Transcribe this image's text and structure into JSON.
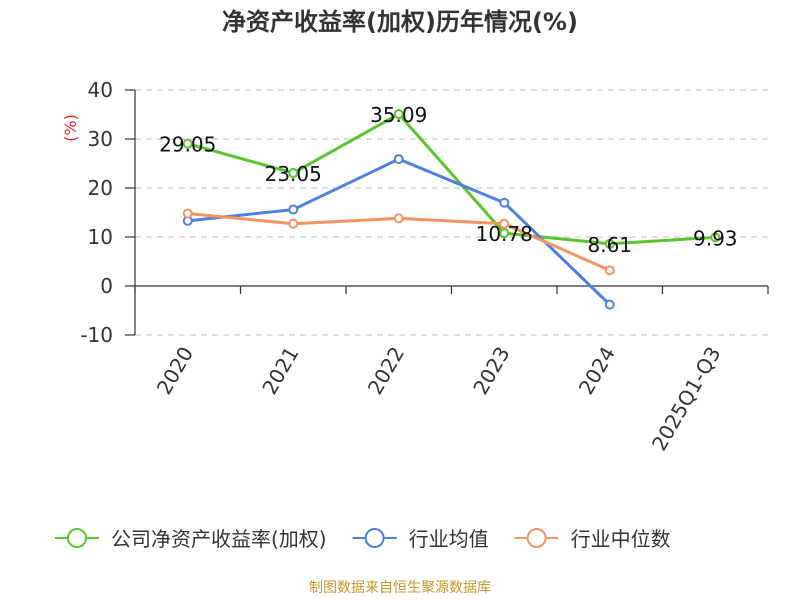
{
  "chart_data": {
    "type": "line",
    "title": "净资产收益率(加权)历年情况(%)",
    "ylabel": "(%)",
    "categories": [
      "2020",
      "2021",
      "2022",
      "2023",
      "2024",
      "2025Q1-Q3"
    ],
    "yticks": [
      "40",
      "30",
      "20",
      "10",
      "0",
      "-10"
    ],
    "ylim": [
      -10,
      40
    ],
    "grid": true,
    "legend_position": "bottom",
    "series": [
      {
        "name": "公司净资产收益率(加权)",
        "color": "#5ac42d",
        "values": [
          29.05,
          23.05,
          35.09,
          10.78,
          8.61,
          9.93
        ],
        "labels": [
          "29.05",
          "23.05",
          "35.09",
          "10.78",
          "8.61",
          "9.93"
        ]
      },
      {
        "name": "行业均值",
        "color": "#4f7fe0",
        "values": [
          13.3,
          15.6,
          25.9,
          17.0,
          -3.8,
          null
        ]
      },
      {
        "name": "行业中位数",
        "color": "#f49363",
        "values": [
          14.8,
          12.7,
          13.8,
          12.7,
          3.2,
          null
        ]
      }
    ]
  },
  "source": "制图数据来自恒生聚源数据库"
}
